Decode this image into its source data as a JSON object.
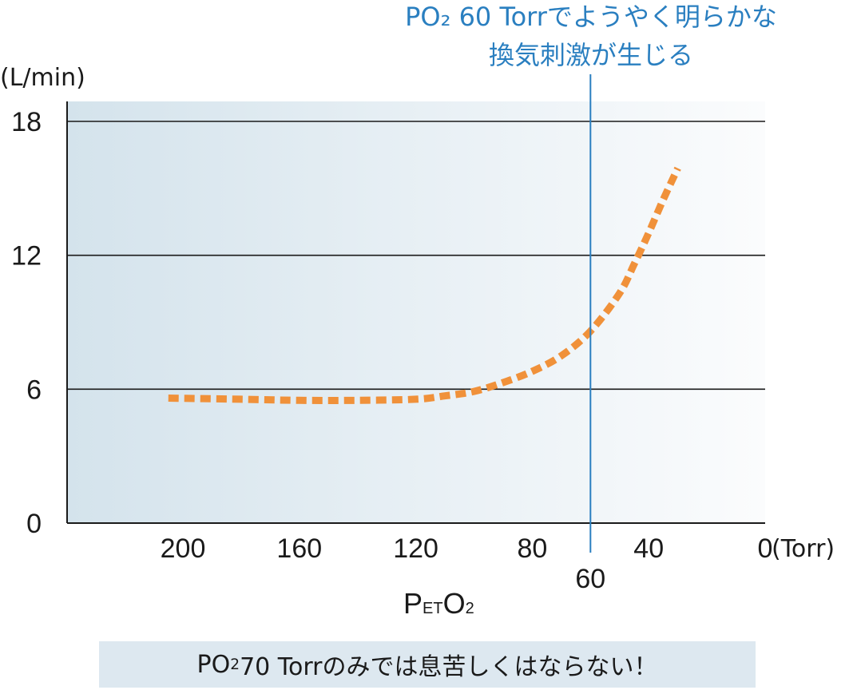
{
  "chart_data": {
    "type": "line",
    "title": "",
    "ylabel": "(L/min)",
    "xunit": "(Torr)",
    "xlabel": {
      "main1": "P",
      "sub1": "ET",
      "main2": "O",
      "sub2": "2"
    },
    "xlim": [
      245,
      0
    ],
    "ylim": [
      0,
      18
    ],
    "x_ticks": [
      200,
      160,
      120,
      80,
      40,
      0
    ],
    "y_ticks": [
      0,
      6,
      12,
      18
    ],
    "grid": "horizontal",
    "series": [
      {
        "color": "#f0913a",
        "style": "dashed",
        "x": [
          205,
          180,
          160,
          140,
          120,
          110,
          100,
          90,
          80,
          70,
          60,
          50,
          45,
          40,
          35,
          30
        ],
        "y": [
          5.6,
          5.55,
          5.5,
          5.5,
          5.55,
          5.7,
          5.9,
          6.3,
          6.8,
          7.5,
          8.6,
          10.3,
          11.6,
          13.0,
          14.5,
          15.9
        ]
      }
    ],
    "reference_line": {
      "x": 60,
      "label": "60",
      "color": "#2a7fc0",
      "annotation_line1": "PO₂ 60 Torrでようやく明らかな",
      "annotation_line2": "換気刺激が生じる"
    }
  },
  "note": {
    "prefix": "PO",
    "sub": "2",
    "suffix": " 70 Torrのみでは息苦しくはならない！"
  }
}
